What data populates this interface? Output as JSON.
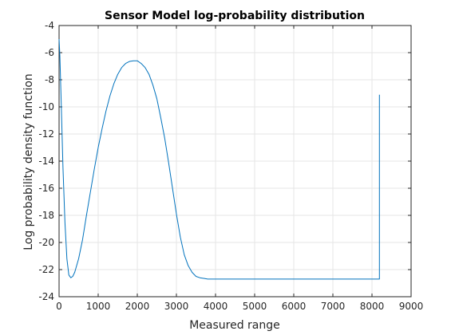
{
  "chart_data": {
    "type": "line",
    "title": "Sensor Model log-probability distribution",
    "xlabel": "Measured range",
    "ylabel": "Log probability density function",
    "xlim": [
      0,
      9000
    ],
    "ylim": [
      -24,
      -4
    ],
    "xticks": [
      0,
      1000,
      2000,
      3000,
      4000,
      5000,
      6000,
      7000,
      8000,
      9000
    ],
    "yticks": [
      -24,
      -22,
      -20,
      -18,
      -16,
      -14,
      -12,
      -10,
      -8,
      -6,
      -4
    ],
    "grid": true,
    "line_color": "#0072BD",
    "series": [
      {
        "x": [
          0,
          20,
          50,
          100,
          150,
          200,
          250,
          300,
          350,
          400,
          500,
          600,
          700,
          800,
          900,
          1000,
          1100,
          1200,
          1300,
          1400,
          1500,
          1600,
          1700,
          1800,
          1900,
          2000,
          2100,
          2200,
          2300,
          2400,
          2500,
          2600,
          2700,
          2800,
          2900,
          3000,
          3100,
          3200,
          3300,
          3400,
          3500,
          3600,
          3700,
          3800,
          3900,
          4000,
          5000,
          6000,
          7000,
          8000,
          8180,
          8190,
          8190
        ],
        "y": [
          -5.0,
          -6.2,
          -9.2,
          -14.5,
          -18.5,
          -21.2,
          -22.4,
          -22.6,
          -22.5,
          -22.2,
          -21.2,
          -19.8,
          -18.0,
          -16.3,
          -14.6,
          -13.0,
          -11.6,
          -10.3,
          -9.2,
          -8.3,
          -7.6,
          -7.1,
          -6.8,
          -6.65,
          -6.6,
          -6.6,
          -6.8,
          -7.1,
          -7.6,
          -8.4,
          -9.4,
          -10.8,
          -12.3,
          -14.1,
          -16.0,
          -17.9,
          -19.6,
          -20.9,
          -21.7,
          -22.2,
          -22.5,
          -22.6,
          -22.65,
          -22.7,
          -22.7,
          -22.7,
          -22.7,
          -22.7,
          -22.7,
          -22.7,
          -22.7,
          -22.7,
          -9.1
        ]
      }
    ]
  }
}
